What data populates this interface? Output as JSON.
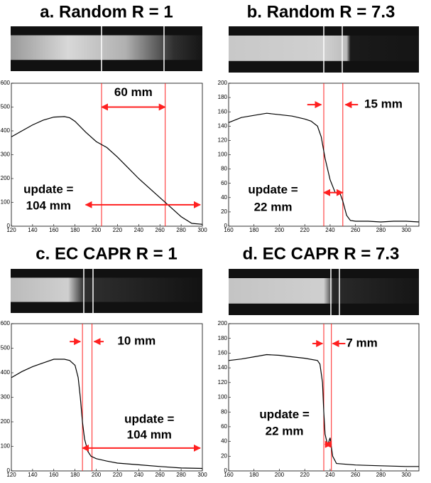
{
  "chart_data": [
    {
      "type": "line",
      "title": "a. Random R = 1",
      "x": [
        120,
        130,
        140,
        150,
        160,
        170,
        175,
        180,
        190,
        200,
        210,
        220,
        230,
        240,
        250,
        260,
        270,
        280,
        290,
        300
      ],
      "values": [
        375,
        400,
        425,
        445,
        458,
        460,
        455,
        440,
        395,
        355,
        330,
        290,
        245,
        200,
        160,
        120,
        80,
        40,
        12,
        8
      ],
      "color": "#000000",
      "xlim": [
        120,
        300
      ],
      "ylim": [
        0,
        600
      ],
      "xticks": [
        120,
        140,
        160,
        180,
        200,
        220,
        240,
        260,
        280,
        300
      ],
      "yticks": [
        0,
        100,
        200,
        300,
        400,
        500,
        600
      ],
      "vlines": [
        205,
        265
      ],
      "vline_color": "#ff2020",
      "arrows": [
        {
          "x": [
            205,
            265
          ],
          "y": 500,
          "both": true
        },
        {
          "x": [
            190,
            298
          ],
          "y": 90,
          "both": true
        }
      ],
      "annotations": [
        {
          "text": "60 mm",
          "x": 235,
          "y": 560
        },
        {
          "text": "update =",
          "x": 155,
          "y": 152
        },
        {
          "text": "104 mm",
          "x": 155,
          "y": 84
        }
      ]
    },
    {
      "type": "line",
      "title": "b. Random R = 7.3",
      "x": [
        160,
        170,
        180,
        190,
        200,
        210,
        220,
        225,
        230,
        233,
        236,
        240,
        244,
        248,
        250,
        253,
        256,
        260,
        270,
        280,
        290,
        300,
        310
      ],
      "values": [
        145,
        152,
        155,
        158,
        156,
        154,
        150,
        147,
        140,
        125,
        95,
        65,
        47,
        45,
        35,
        15,
        8,
        7,
        7,
        6,
        7,
        7,
        6
      ],
      "color": "#000000",
      "xlim": [
        160,
        310
      ],
      "ylim": [
        0,
        200
      ],
      "xticks": [
        160,
        180,
        200,
        220,
        240,
        260,
        280,
        300
      ],
      "yticks": [
        0,
        20,
        40,
        60,
        80,
        100,
        120,
        140,
        160,
        180,
        200
      ],
      "vlines": [
        235,
        250
      ],
      "vline_color": "#ff2020",
      "arrows": [
        {
          "x": [
            222,
            233
          ],
          "y": 170,
          "both": false
        },
        {
          "x": [
            262,
            252
          ],
          "y": 170,
          "both": false
        },
        {
          "x": [
            235,
            250
          ],
          "y": 47,
          "both": true
        }
      ],
      "annotations": [
        {
          "text": "15 mm",
          "x": 282,
          "y": 170
        },
        {
          "text": "update =",
          "x": 195,
          "y": 50
        },
        {
          "text": "22 mm",
          "x": 195,
          "y": 26
        }
      ]
    },
    {
      "type": "line",
      "title": "c. EC CAPR R = 1",
      "x": [
        120,
        130,
        140,
        150,
        160,
        170,
        175,
        180,
        183,
        185,
        187,
        189,
        192,
        195,
        200,
        210,
        220,
        240,
        260,
        280,
        300
      ],
      "values": [
        380,
        405,
        425,
        440,
        455,
        455,
        450,
        430,
        380,
        300,
        200,
        130,
        80,
        60,
        50,
        40,
        32,
        25,
        18,
        12,
        10
      ],
      "color": "#000000",
      "xlim": [
        120,
        300
      ],
      "ylim": [
        0,
        600
      ],
      "xticks": [
        120,
        140,
        160,
        180,
        200,
        220,
        240,
        260,
        280,
        300
      ],
      "yticks": [
        0,
        100,
        200,
        300,
        400,
        500,
        600
      ],
      "vlines": [
        187,
        196
      ],
      "vline_color": "#ff2020",
      "arrows": [
        {
          "x": [
            175,
            185
          ],
          "y": 527,
          "both": false
        },
        {
          "x": [
            207,
            198
          ],
          "y": 527,
          "both": false
        },
        {
          "x": [
            187,
            298
          ],
          "y": 93,
          "both": true
        }
      ],
      "annotations": [
        {
          "text": "10 mm",
          "x": 238,
          "y": 527
        },
        {
          "text": "update =",
          "x": 250,
          "y": 209
        },
        {
          "text": "104 mm",
          "x": 250,
          "y": 145
        }
      ]
    },
    {
      "type": "line",
      "title": "d. EC CAPR R = 7.3",
      "x": [
        160,
        170,
        180,
        190,
        200,
        210,
        220,
        230,
        232,
        234,
        235,
        236,
        238,
        240,
        242,
        245,
        260,
        280,
        300,
        310
      ],
      "values": [
        150,
        152,
        155,
        158,
        157,
        155,
        153,
        150,
        145,
        120,
        80,
        50,
        35,
        45,
        20,
        10,
        8,
        7,
        6,
        6
      ],
      "color": "#000000",
      "xlim": [
        160,
        310
      ],
      "ylim": [
        0,
        200
      ],
      "xticks": [
        160,
        180,
        200,
        220,
        240,
        260,
        280,
        300
      ],
      "yticks": [
        0,
        20,
        40,
        60,
        80,
        100,
        120,
        140,
        160,
        180,
        200
      ],
      "vlines": [
        235,
        241
      ],
      "vline_color": "#ff2020",
      "arrows": [
        {
          "x": [
            226,
            234
          ],
          "y": 173,
          "both": false
        },
        {
          "x": [
            252,
            242
          ],
          "y": 173,
          "both": false
        },
        {
          "x": [
            236,
            241
          ],
          "y": 36,
          "both": true
        }
      ],
      "annotations": [
        {
          "text": "7 mm",
          "x": 265,
          "y": 173
        },
        {
          "text": "update =",
          "x": 204,
          "y": 76
        },
        {
          "text": "22 mm",
          "x": 204,
          "y": 53
        }
      ]
    }
  ]
}
